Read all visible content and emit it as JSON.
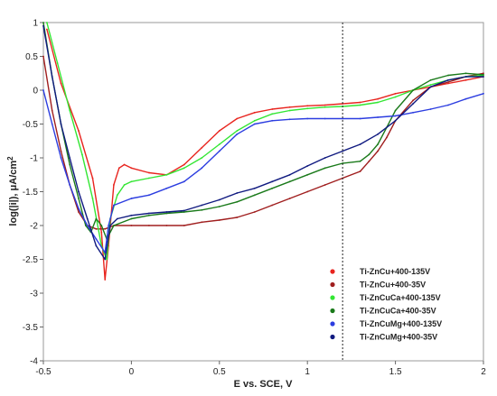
{
  "chart_data": {
    "type": "line",
    "xlabel": "E vs. SCE, V",
    "ylabel": "log(|i|), μA/cm",
    "ylabel_sup": "2",
    "xlim": [
      -0.5,
      2
    ],
    "ylim": [
      -4,
      1
    ],
    "xticks": [
      "-0.5",
      "0",
      "0.5",
      "1",
      "1.5",
      "2"
    ],
    "xtick_values": [
      -0.5,
      0,
      0.5,
      1,
      1.5,
      2
    ],
    "yticks": [
      "-4",
      "-3.5",
      "-3",
      "-2.5",
      "-2",
      "-1.5",
      "-1",
      "-0.5",
      "0",
      "0.5",
      "1"
    ],
    "ytick_values": [
      -4,
      -3.5,
      -3,
      -2.5,
      -2,
      -1.5,
      -1,
      -0.5,
      0,
      0.5,
      1
    ],
    "vline_x": 1.2,
    "legend_position": "bottom-right",
    "series": [
      {
        "name": "Ti-ZnCu+400-135V",
        "color": "#e8241e",
        "points": [
          [
            -0.48,
            0.9
          ],
          [
            -0.4,
            0.1
          ],
          [
            -0.3,
            -0.6
          ],
          [
            -0.22,
            -1.3
          ],
          [
            -0.17,
            -2.1
          ],
          [
            -0.15,
            -2.8
          ],
          [
            -0.13,
            -2.3
          ],
          [
            -0.1,
            -1.4
          ],
          [
            -0.07,
            -1.15
          ],
          [
            -0.04,
            -1.1
          ],
          [
            0,
            -1.15
          ],
          [
            0.1,
            -1.22
          ],
          [
            0.2,
            -1.25
          ],
          [
            0.3,
            -1.1
          ],
          [
            0.4,
            -0.85
          ],
          [
            0.5,
            -0.6
          ],
          [
            0.6,
            -0.42
          ],
          [
            0.7,
            -0.33
          ],
          [
            0.8,
            -0.28
          ],
          [
            0.9,
            -0.25
          ],
          [
            1.0,
            -0.23
          ],
          [
            1.1,
            -0.22
          ],
          [
            1.2,
            -0.2
          ],
          [
            1.3,
            -0.18
          ],
          [
            1.4,
            -0.13
          ],
          [
            1.5,
            -0.05
          ],
          [
            1.6,
            0.0
          ],
          [
            1.7,
            0.05
          ],
          [
            1.8,
            0.1
          ],
          [
            1.9,
            0.15
          ],
          [
            2.0,
            0.2
          ]
        ]
      },
      {
        "name": "Ti-ZnCu+400-35V",
        "color": "#a01e1e",
        "points": [
          [
            -0.5,
            0.5
          ],
          [
            -0.45,
            -0.3
          ],
          [
            -0.4,
            -0.9
          ],
          [
            -0.35,
            -1.4
          ],
          [
            -0.3,
            -1.8
          ],
          [
            -0.25,
            -2.0
          ],
          [
            -0.2,
            -2.05
          ],
          [
            -0.15,
            -2.05
          ],
          [
            -0.1,
            -2.0
          ],
          [
            0,
            -2.0
          ],
          [
            0.1,
            -2.0
          ],
          [
            0.2,
            -2.0
          ],
          [
            0.3,
            -2.0
          ],
          [
            0.4,
            -1.95
          ],
          [
            0.5,
            -1.92
          ],
          [
            0.6,
            -1.88
          ],
          [
            0.7,
            -1.8
          ],
          [
            0.8,
            -1.7
          ],
          [
            0.9,
            -1.6
          ],
          [
            1.0,
            -1.5
          ],
          [
            1.1,
            -1.4
          ],
          [
            1.2,
            -1.3
          ],
          [
            1.3,
            -1.2
          ],
          [
            1.35,
            -1.05
          ],
          [
            1.4,
            -0.9
          ],
          [
            1.45,
            -0.7
          ],
          [
            1.5,
            -0.45
          ],
          [
            1.6,
            -0.15
          ],
          [
            1.7,
            0.05
          ],
          [
            1.8,
            0.12
          ],
          [
            1.9,
            0.2
          ],
          [
            2.0,
            0.25
          ]
        ]
      },
      {
        "name": "Ti-ZnCuCa+400-135V",
        "color": "#33e633",
        "points": [
          [
            -0.48,
            1.0
          ],
          [
            -0.42,
            0.4
          ],
          [
            -0.35,
            -0.3
          ],
          [
            -0.28,
            -0.95
          ],
          [
            -0.22,
            -1.6
          ],
          [
            -0.17,
            -2.3
          ],
          [
            -0.14,
            -2.5
          ],
          [
            -0.12,
            -1.9
          ],
          [
            -0.08,
            -1.55
          ],
          [
            -0.04,
            -1.4
          ],
          [
            0,
            -1.35
          ],
          [
            0.1,
            -1.3
          ],
          [
            0.2,
            -1.25
          ],
          [
            0.3,
            -1.15
          ],
          [
            0.4,
            -1.0
          ],
          [
            0.5,
            -0.8
          ],
          [
            0.6,
            -0.6
          ],
          [
            0.7,
            -0.45
          ],
          [
            0.8,
            -0.35
          ],
          [
            0.9,
            -0.3
          ],
          [
            1.0,
            -0.27
          ],
          [
            1.1,
            -0.25
          ],
          [
            1.2,
            -0.24
          ],
          [
            1.3,
            -0.22
          ],
          [
            1.4,
            -0.18
          ],
          [
            1.5,
            -0.1
          ],
          [
            1.6,
            0.0
          ],
          [
            1.7,
            0.08
          ],
          [
            1.8,
            0.15
          ],
          [
            1.9,
            0.2
          ],
          [
            2.0,
            0.22
          ]
        ]
      },
      {
        "name": "Ti-ZnCuCa+400-35V",
        "color": "#1a7a1a",
        "points": [
          [
            -0.5,
            1.0
          ],
          [
            -0.45,
            0.2
          ],
          [
            -0.4,
            -0.5
          ],
          [
            -0.35,
            -1.1
          ],
          [
            -0.3,
            -1.6
          ],
          [
            -0.26,
            -2.0
          ],
          [
            -0.23,
            -2.1
          ],
          [
            -0.2,
            -1.9
          ],
          [
            -0.17,
            -2.0
          ],
          [
            -0.14,
            -2.2
          ],
          [
            -0.1,
            -2.0
          ],
          [
            0,
            -1.9
          ],
          [
            0.1,
            -1.85
          ],
          [
            0.2,
            -1.82
          ],
          [
            0.3,
            -1.8
          ],
          [
            0.4,
            -1.77
          ],
          [
            0.5,
            -1.72
          ],
          [
            0.6,
            -1.65
          ],
          [
            0.7,
            -1.55
          ],
          [
            0.8,
            -1.45
          ],
          [
            0.9,
            -1.35
          ],
          [
            1.0,
            -1.25
          ],
          [
            1.1,
            -1.15
          ],
          [
            1.2,
            -1.08
          ],
          [
            1.3,
            -1.05
          ],
          [
            1.35,
            -0.95
          ],
          [
            1.4,
            -0.8
          ],
          [
            1.45,
            -0.55
          ],
          [
            1.5,
            -0.3
          ],
          [
            1.6,
            0.0
          ],
          [
            1.7,
            0.15
          ],
          [
            1.8,
            0.22
          ],
          [
            1.9,
            0.25
          ],
          [
            2.0,
            0.23
          ]
        ]
      },
      {
        "name": "Ti-ZnCuMg+400-135V",
        "color": "#2c3de0",
        "points": [
          [
            -0.5,
            0.0
          ],
          [
            -0.45,
            -0.5
          ],
          [
            -0.4,
            -1.0
          ],
          [
            -0.35,
            -1.4
          ],
          [
            -0.3,
            -1.75
          ],
          [
            -0.25,
            -2.0
          ],
          [
            -0.2,
            -2.2
          ],
          [
            -0.15,
            -2.4
          ],
          [
            -0.13,
            -2.0
          ],
          [
            -0.1,
            -1.7
          ],
          [
            0,
            -1.6
          ],
          [
            0.1,
            -1.55
          ],
          [
            0.2,
            -1.45
          ],
          [
            0.3,
            -1.35
          ],
          [
            0.4,
            -1.15
          ],
          [
            0.5,
            -0.9
          ],
          [
            0.6,
            -0.65
          ],
          [
            0.7,
            -0.5
          ],
          [
            0.8,
            -0.45
          ],
          [
            0.9,
            -0.43
          ],
          [
            1.0,
            -0.42
          ],
          [
            1.1,
            -0.42
          ],
          [
            1.2,
            -0.42
          ],
          [
            1.3,
            -0.42
          ],
          [
            1.4,
            -0.4
          ],
          [
            1.5,
            -0.38
          ],
          [
            1.6,
            -0.33
          ],
          [
            1.7,
            -0.28
          ],
          [
            1.8,
            -0.22
          ],
          [
            1.9,
            -0.13
          ],
          [
            2.0,
            -0.05
          ]
        ]
      },
      {
        "name": "Ti-ZnCuMg+400-35V",
        "color": "#101a80",
        "points": [
          [
            -0.5,
            0.95
          ],
          [
            -0.45,
            0.2
          ],
          [
            -0.4,
            -0.5
          ],
          [
            -0.35,
            -1.0
          ],
          [
            -0.3,
            -1.5
          ],
          [
            -0.25,
            -1.9
          ],
          [
            -0.2,
            -2.3
          ],
          [
            -0.15,
            -2.5
          ],
          [
            -0.12,
            -2.0
          ],
          [
            -0.08,
            -1.9
          ],
          [
            0,
            -1.85
          ],
          [
            0.1,
            -1.82
          ],
          [
            0.2,
            -1.8
          ],
          [
            0.3,
            -1.78
          ],
          [
            0.4,
            -1.7
          ],
          [
            0.5,
            -1.62
          ],
          [
            0.6,
            -1.52
          ],
          [
            0.7,
            -1.45
          ],
          [
            0.8,
            -1.35
          ],
          [
            0.9,
            -1.25
          ],
          [
            1.0,
            -1.12
          ],
          [
            1.1,
            -1.0
          ],
          [
            1.2,
            -0.9
          ],
          [
            1.3,
            -0.8
          ],
          [
            1.4,
            -0.65
          ],
          [
            1.5,
            -0.45
          ],
          [
            1.6,
            -0.2
          ],
          [
            1.7,
            0.05
          ],
          [
            1.8,
            0.15
          ],
          [
            1.9,
            0.2
          ],
          [
            2.0,
            0.2
          ]
        ]
      }
    ]
  }
}
